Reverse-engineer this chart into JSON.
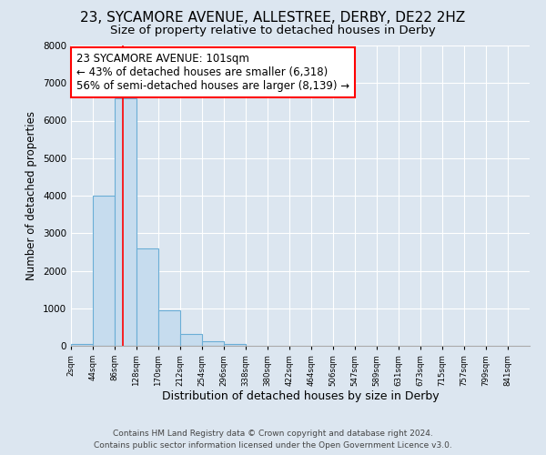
{
  "title": "23, SYCAMORE AVENUE, ALLESTREE, DERBY, DE22 2HZ",
  "subtitle": "Size of property relative to detached houses in Derby",
  "xlabel": "Distribution of detached houses by size in Derby",
  "ylabel": "Number of detached properties",
  "bar_edge_color": "#6baed6",
  "bar_face_color": "#c6dcee",
  "bg_color": "#dce6f0",
  "grid_color": "#ffffff",
  "bin_labels": [
    "2sqm",
    "44sqm",
    "86sqm",
    "128sqm",
    "170sqm",
    "212sqm",
    "254sqm",
    "296sqm",
    "338sqm",
    "380sqm",
    "422sqm",
    "464sqm",
    "506sqm",
    "547sqm",
    "589sqm",
    "631sqm",
    "673sqm",
    "715sqm",
    "757sqm",
    "799sqm",
    "841sqm"
  ],
  "bar_heights": [
    50,
    4000,
    6600,
    2600,
    950,
    320,
    120,
    50,
    0,
    0,
    0,
    0,
    0,
    0,
    0,
    0,
    0,
    0,
    0,
    0
  ],
  "ylim": [
    0,
    8000
  ],
  "yticks": [
    0,
    1000,
    2000,
    3000,
    4000,
    5000,
    6000,
    7000,
    8000
  ],
  "property_label": "23 SYCAMORE AVENUE: 101sqm",
  "annotation_line1": "← 43% of detached houses are smaller (6,318)",
  "annotation_line2": "56% of semi-detached houses are larger (8,139) →",
  "red_line_x": 101,
  "footer1": "Contains HM Land Registry data © Crown copyright and database right 2024.",
  "footer2": "Contains public sector information licensed under the Open Government Licence v3.0.",
  "title_fontsize": 11,
  "subtitle_fontsize": 9.5,
  "xlabel_fontsize": 9,
  "ylabel_fontsize": 8.5,
  "annotation_fontsize": 8.5,
  "footer_fontsize": 6.5,
  "bin_width": 42,
  "n_bins": 20
}
